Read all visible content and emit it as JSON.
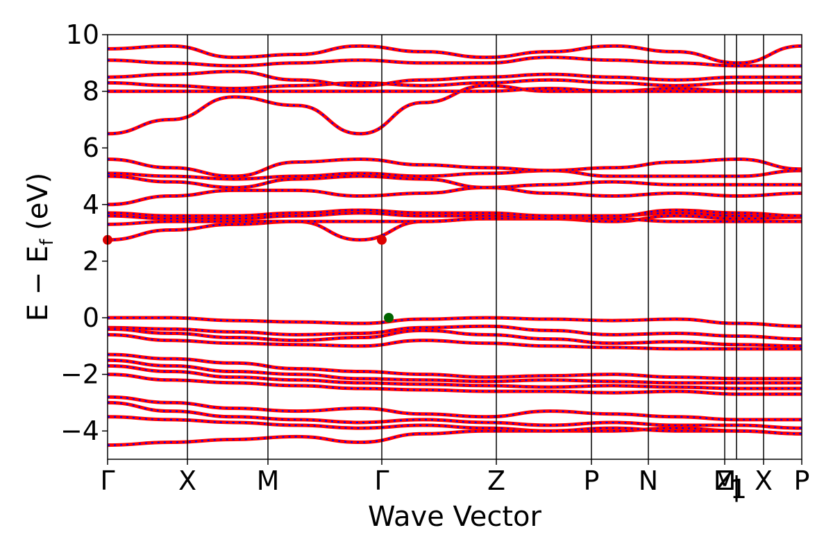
{
  "chart_data": {
    "type": "line",
    "xlabel": "Wave Vector",
    "ylabel": "E − E",
    "ylabel_sub": "f",
    "ylabel_unit": " (eV)",
    "ylim": [
      -5,
      10
    ],
    "yticks": [
      -4,
      -2,
      0,
      2,
      4,
      6,
      8,
      10
    ],
    "ytick_labels": [
      "−4",
      "−2",
      "0",
      "2",
      "4",
      "6",
      "8",
      "10"
    ],
    "xlim": [
      0,
      1
    ],
    "kpoints": [
      {
        "label": "Γ",
        "x": 0.0
      },
      {
        "label": "X",
        "x": 0.115
      },
      {
        "label": "M",
        "x": 0.231
      },
      {
        "label": "Γ",
        "x": 0.395
      },
      {
        "label": "Z",
        "x": 0.56
      },
      {
        "label": "P",
        "x": 0.697
      },
      {
        "label": "N",
        "x": 0.779
      },
      {
        "label": "M",
        "x": 0.889
      },
      {
        "label": "Z",
        "x": 0.889
      },
      {
        "label": "1",
        "x": 0.889
      },
      {
        "label": "|",
        "x": 0.906
      },
      {
        "label": "X",
        "x": 0.945
      },
      {
        "label": "P",
        "x": 1.0
      }
    ],
    "series_colors": {
      "primary": "#ff0000",
      "overlay": "#0000ff"
    },
    "cbm_points": [
      {
        "x": 0.0,
        "y": 2.75
      },
      {
        "x": 0.395,
        "y": 2.75
      }
    ],
    "vbm_points": [
      {
        "x": 0.405,
        "y": 0.0
      }
    ],
    "marker_colors": {
      "cbm": "#dd0000",
      "vbm": "#006400"
    },
    "band_groups": {
      "high_valence": [
        [
          0.0,
          0.0,
          -0.1,
          -0.15,
          -0.2,
          -0.05,
          0.0,
          -0.05,
          -0.1,
          -0.05,
          -0.2,
          -0.3
        ],
        [
          -0.35,
          -0.4,
          -0.5,
          -0.6,
          -0.55,
          -0.35,
          -0.3,
          -0.45,
          -0.6,
          -0.55,
          -0.65,
          -0.75
        ],
        [
          -0.4,
          -0.55,
          -0.7,
          -0.8,
          -0.7,
          -0.45,
          -0.6,
          -0.75,
          -0.9,
          -0.85,
          -0.95,
          -1.0
        ],
        [
          -0.6,
          -0.8,
          -0.9,
          -0.95,
          -1.0,
          -0.8,
          -0.9,
          -1.0,
          -1.05,
          -1.1,
          -1.1,
          -1.1
        ]
      ],
      "mid_valence": [
        [
          -1.3,
          -1.45,
          -1.6,
          -1.8,
          -1.9,
          -2.0,
          -2.1,
          -2.05,
          -2.0,
          -2.1,
          -2.15,
          -2.15
        ],
        [
          -1.5,
          -1.7,
          -1.9,
          -2.0,
          -2.15,
          -2.2,
          -2.25,
          -2.2,
          -2.25,
          -2.3,
          -2.3,
          -2.3
        ],
        [
          -1.7,
          -1.9,
          -2.1,
          -2.2,
          -2.3,
          -2.35,
          -2.4,
          -2.45,
          -2.4,
          -2.45,
          -2.5,
          -2.5
        ],
        [
          -2.0,
          -2.2,
          -2.3,
          -2.4,
          -2.5,
          -2.55,
          -2.6,
          -2.6,
          -2.65,
          -2.6,
          -2.7,
          -2.7
        ]
      ],
      "deep_valence": [
        [
          -2.8,
          -3.0,
          -3.2,
          -3.3,
          -3.2,
          -3.4,
          -3.5,
          -3.3,
          -3.4,
          -3.5,
          -3.6,
          -3.6
        ],
        [
          -3.0,
          -3.3,
          -3.5,
          -3.6,
          -3.7,
          -3.6,
          -3.7,
          -3.8,
          -3.7,
          -3.8,
          -3.8,
          -3.9
        ],
        [
          -3.5,
          -3.6,
          -3.7,
          -3.8,
          -3.9,
          -3.8,
          -3.9,
          -4.0,
          -4.0,
          -3.9,
          -4.0,
          -4.1
        ],
        [
          -4.5,
          -4.4,
          -4.3,
          -4.2,
          -4.4,
          -4.1,
          -4.0,
          -4.0,
          -3.9,
          -4.0,
          -4.0,
          -4.1
        ]
      ],
      "low_conduction": [
        [
          2.75,
          3.1,
          3.3,
          3.4,
          2.75,
          3.4,
          3.5,
          3.5,
          3.4,
          3.6,
          3.5,
          3.55
        ],
        [
          3.3,
          3.4,
          3.4,
          3.4,
          3.4,
          3.4,
          3.5,
          3.5,
          3.5,
          3.4,
          3.4,
          3.4
        ],
        [
          3.6,
          3.5,
          3.5,
          3.6,
          3.7,
          3.6,
          3.6,
          3.5,
          3.6,
          3.7,
          3.6,
          3.6
        ],
        [
          3.7,
          3.6,
          3.6,
          3.7,
          3.8,
          3.7,
          3.7,
          3.6,
          3.6,
          3.8,
          3.7,
          3.6
        ]
      ],
      "upper_conduction": [
        [
          4.0,
          4.3,
          4.5,
          4.5,
          4.3,
          4.4,
          4.6,
          4.4,
          4.3,
          4.4,
          4.3,
          4.4
        ],
        [
          5.0,
          4.8,
          4.6,
          4.9,
          5.0,
          4.9,
          4.6,
          4.7,
          4.8,
          4.7,
          4.7,
          4.7
        ],
        [
          5.1,
          5.0,
          4.9,
          5.0,
          5.1,
          5.0,
          5.1,
          5.2,
          5.0,
          5.0,
          5.0,
          5.2
        ],
        [
          5.6,
          5.3,
          5.0,
          5.5,
          5.6,
          5.4,
          5.3,
          5.2,
          5.3,
          5.5,
          5.6,
          5.25
        ]
      ],
      "high_conduction": [
        [
          6.5,
          7.0,
          7.8,
          7.5,
          6.5,
          7.6,
          8.2,
          8.0,
          8.0,
          8.1,
          8.0,
          8.0
        ],
        [
          8.0,
          8.0,
          8.0,
          8.0,
          8.0,
          8.0,
          8.0,
          8.1,
          8.0,
          8.0,
          8.0,
          8.0
        ],
        [
          8.3,
          8.2,
          8.1,
          8.2,
          8.3,
          8.2,
          8.3,
          8.4,
          8.3,
          8.2,
          8.3,
          8.3
        ],
        [
          8.5,
          8.6,
          8.7,
          8.4,
          8.2,
          8.4,
          8.5,
          8.6,
          8.5,
          8.4,
          8.5,
          8.5
        ],
        [
          9.1,
          9.0,
          8.9,
          9.0,
          9.1,
          9.0,
          9.0,
          9.2,
          9.1,
          9.0,
          8.9,
          8.9
        ],
        [
          9.5,
          9.6,
          9.2,
          9.3,
          9.6,
          9.4,
          9.2,
          9.4,
          9.6,
          9.4,
          9.0,
          9.6
        ]
      ]
    }
  }
}
